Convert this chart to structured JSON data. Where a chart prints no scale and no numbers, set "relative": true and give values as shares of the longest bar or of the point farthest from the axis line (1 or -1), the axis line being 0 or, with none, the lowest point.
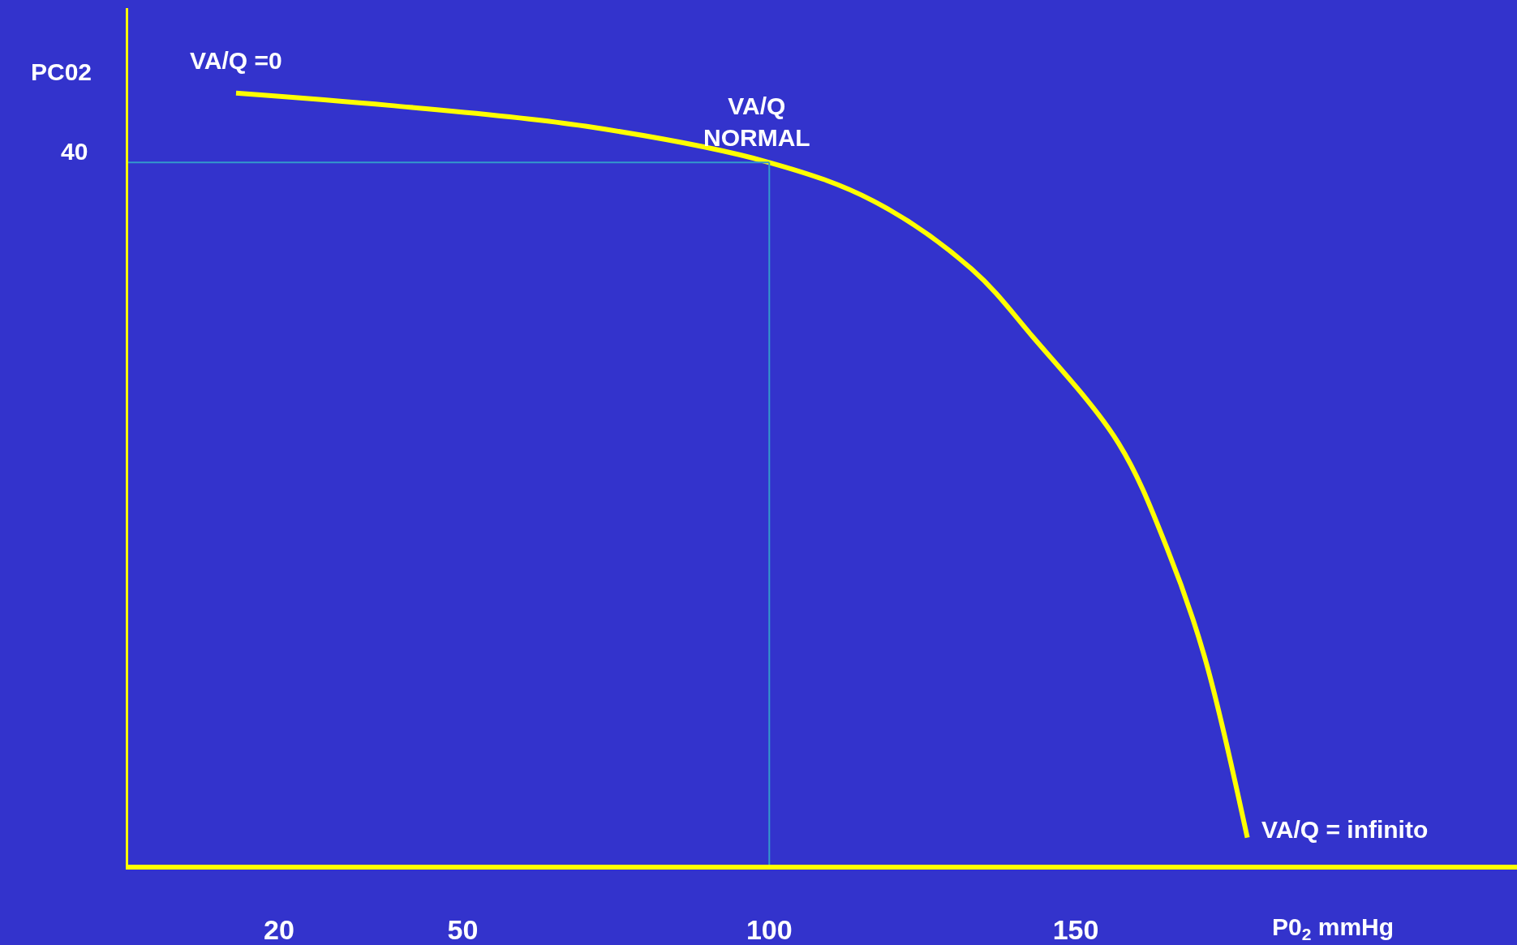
{
  "chart_data": {
    "type": "line",
    "relative": true,
    "xlabel": "P0$_{2}$ mmHg",
    "ylabel": "PC02",
    "x": [
      13,
      38,
      70,
      100,
      117,
      133,
      143,
      157,
      165,
      171,
      178
    ],
    "series": [
      {
        "color": "#ffff00",
        "values": [
          1,
          0.984,
          0.957,
          0.91,
          0.86,
          0.772,
          0.684,
          0.546,
          0.408,
          0.27,
          0.035
        ]
      }
    ],
    "xlim": [
      -5,
      222
    ],
    "xticks": [
      20,
      50,
      100,
      150
    ],
    "ref_lines": [
      {
        "axis": "y",
        "value": 0.91,
        "label": null,
        "color": "#3399cc"
      },
      {
        "axis": "x",
        "value": -5,
        "label": null,
        "color": "#ffff00"
      },
      {
        "axis": "x",
        "value": 100,
        "label": null,
        "color": "#3399cc"
      }
    ],
    "annotations": [
      "40",
      {
        "text": "VA/Q =0",
        "x": 13,
        "y": 1
      },
      {
        "text": "VA/Q\nNORMAL",
        "x": 100,
        "y": 0.91
      },
      {
        "text": "VA/Q = infinito",
        "x": 178,
        "y": 0.035
      }
    ]
  }
}
